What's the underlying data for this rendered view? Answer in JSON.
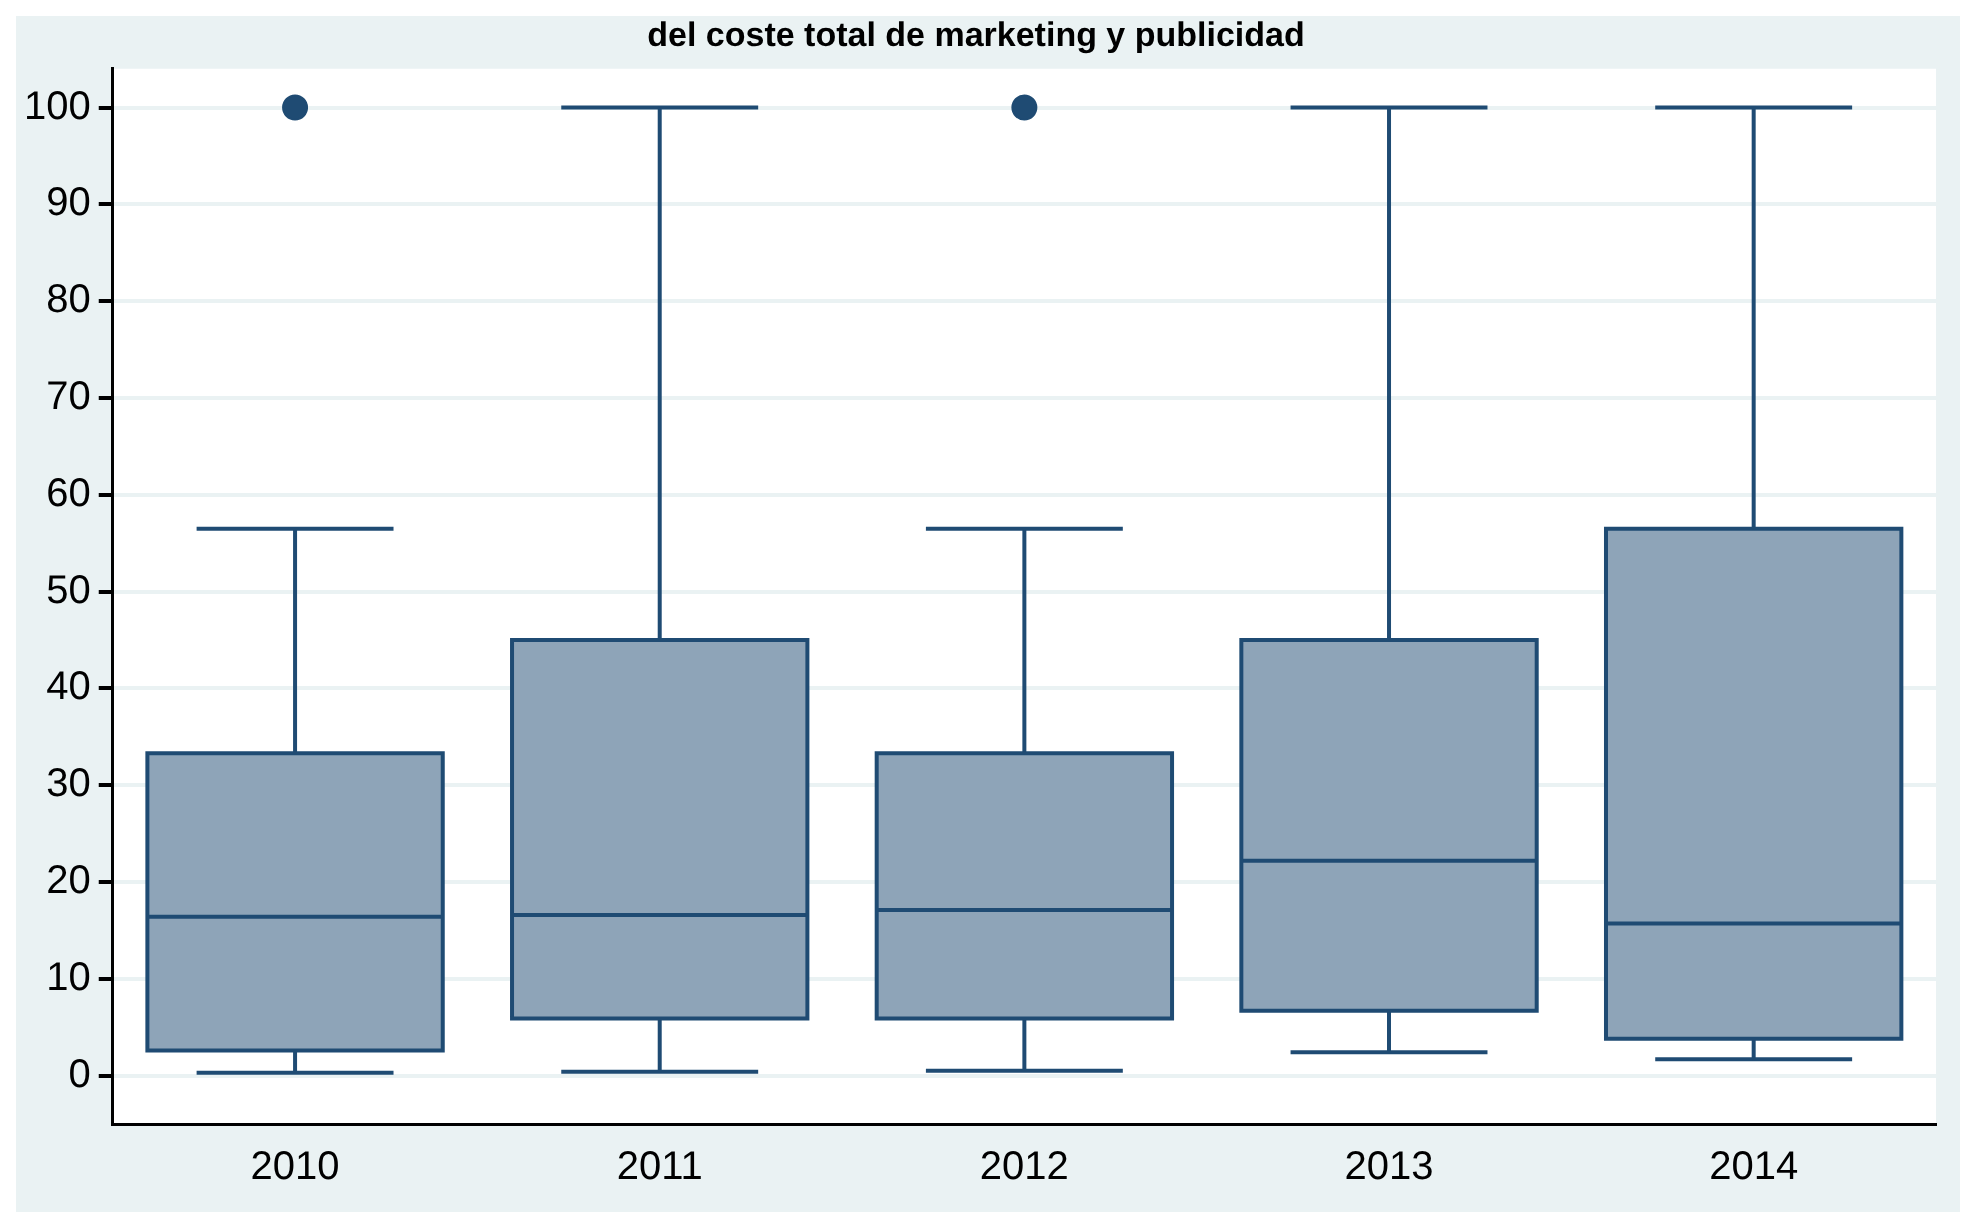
{
  "chart_data": {
    "type": "box",
    "title": "del coste total de marketing y publicidad",
    "categories": [
      "2010",
      "2011",
      "2012",
      "2013",
      "2014"
    ],
    "color": "#8ea4b8",
    "boxes": [
      {
        "low": 0.3,
        "q1": 2.6,
        "median": 16.4,
        "q3": 33.3,
        "high": 56.5,
        "outliers": [
          100
        ]
      },
      {
        "low": 0.4,
        "q1": 5.9,
        "median": 16.6,
        "q3": 45,
        "high": 100
      },
      {
        "low": 0.5,
        "q1": 5.9,
        "median": 17.1,
        "q3": 33.3,
        "high": 56.5,
        "outliers": [
          100
        ]
      },
      {
        "low": 2.4,
        "q1": 6.7,
        "median": 22.2,
        "q3": 45,
        "high": 100
      },
      {
        "low": 1.7,
        "q1": 3.8,
        "median": 15.7,
        "q3": 56.5,
        "high": 100
      }
    ],
    "ylim": [
      -5,
      104
    ],
    "yticks": [
      0,
      10,
      20,
      30,
      40,
      50,
      60,
      70,
      80,
      90,
      100
    ],
    "grid": "y",
    "marker": "circle",
    "legend": false
  }
}
